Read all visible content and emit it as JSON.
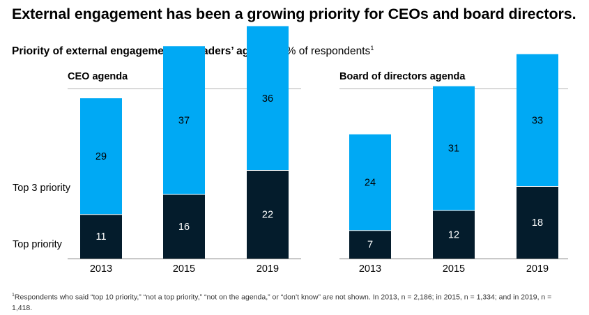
{
  "headline": "External engagement has been a growing priority for CEOs and board directors.",
  "subtitle": {
    "bold": "Priority of external engagement on leaders’ agendas,",
    "normal": " % of respondents",
    "footnote_mark": "1"
  },
  "row_labels": {
    "top3": "Top 3 priority",
    "top": "Top priority"
  },
  "colors": {
    "top_priority": "#041C2C",
    "top3_priority": "#00A9F4",
    "rule": "#B3B3B3"
  },
  "chart_data": [
    {
      "type": "bar",
      "stacked": true,
      "title": "CEO agenda",
      "categories": [
        "2013",
        "2015",
        "2019"
      ],
      "series": [
        {
          "name": "Top priority",
          "values": [
            11,
            16,
            22
          ]
        },
        {
          "name": "Top 3 priority",
          "values": [
            29,
            37,
            36
          ]
        }
      ]
    },
    {
      "type": "bar",
      "stacked": true,
      "title": "Board of directors agenda",
      "categories": [
        "2013",
        "2015",
        "2019"
      ],
      "series": [
        {
          "name": "Top priority",
          "values": [
            7,
            12,
            18
          ]
        },
        {
          "name": "Top 3 priority",
          "values": [
            24,
            31,
            33
          ]
        }
      ]
    }
  ],
  "footnote": {
    "mark": "1",
    "text": "Respondents who said “top 10 priority,” “not a top priority,” “not on the agenda,” or “don’t know” are not shown. In 2013, n = 2,186; in 2015, n = 1,334; and in 2019, n = 1,418."
  }
}
